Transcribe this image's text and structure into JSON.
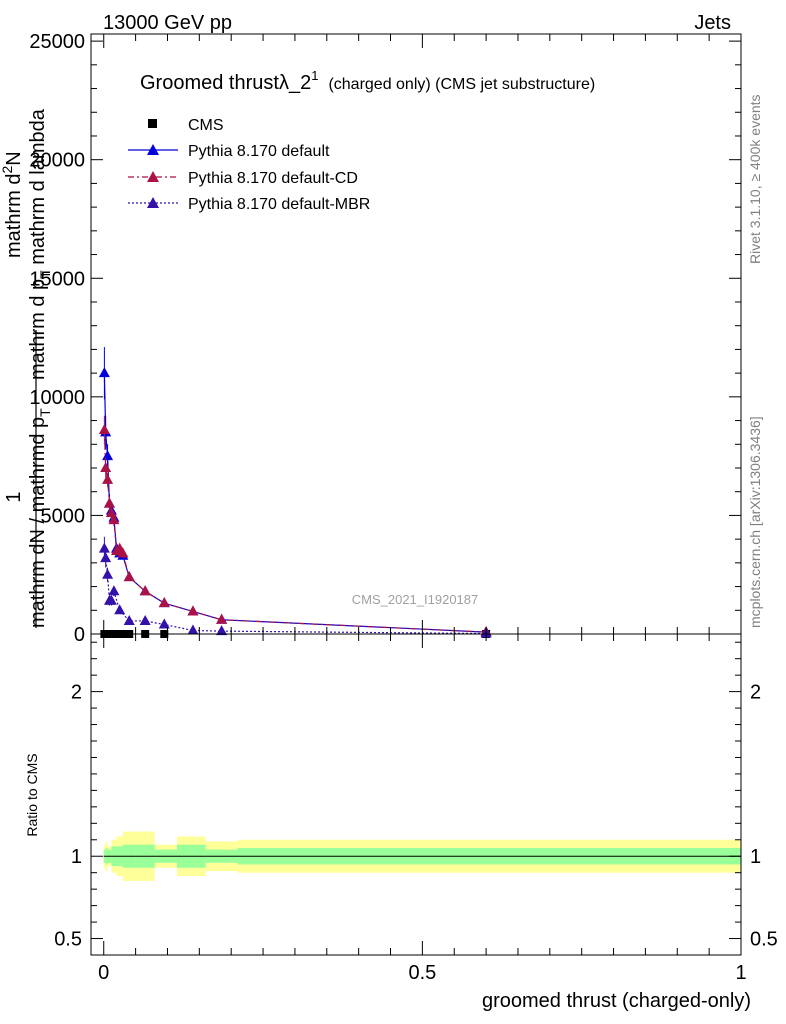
{
  "header": {
    "left": "13000 GeV pp",
    "right": "Jets"
  },
  "side_labels": {
    "rivet": "Rivet 3.1.10, ≥ 400k events",
    "mcplots": "mcplots.cern.ch [arXiv:1306.3436]"
  },
  "chart_data": {
    "type": "line",
    "title": "Groomed thrustλ_2",
    "title_superscript": "1",
    "subtitle": "(charged only) (CMS jet substructure)",
    "watermark": "CMS_2021_I1920187",
    "xlabel": "groomed thrust (charged-only)",
    "ylabel_main": {
      "prefix": "1",
      "denominator": "mathrm dN / mathrmd p",
      "denominator_sub": "T",
      "numerator": "mathrm d",
      "numerator_sup": "2",
      "numerator_rest": "N",
      "numerator_line2": "mathrm d p",
      "numerator_line2_sub": "T",
      "numerator_line2_rest": " mathrm d lambda"
    },
    "ylabel_ratio": "Ratio to CMS",
    "xlim": [
      -0.02,
      1.0
    ],
    "ylim_main": [
      0,
      25300
    ],
    "ylim_ratio": [
      0.4,
      2.35
    ],
    "x_ticks": [
      0,
      0.5,
      1
    ],
    "x_tick_labels": [
      "0",
      "0.5",
      "1"
    ],
    "y_ticks_main": [
      0,
      5000,
      10000,
      15000,
      20000,
      25000
    ],
    "y_tick_labels_main": [
      "0",
      "5000",
      "10000",
      "15000",
      "20000",
      "25000"
    ],
    "y_ticks_ratio": [
      0.5,
      1,
      2
    ],
    "y_tick_labels_ratio": [
      "0.5",
      "1",
      "2"
    ],
    "legend_position": "top-left",
    "series": [
      {
        "name": "CMS",
        "color": "#000000",
        "marker": "square",
        "x": [
          0.001,
          0.004,
          0.008,
          0.012,
          0.016,
          0.022,
          0.03,
          0.04,
          0.065,
          0.095,
          0.6
        ],
        "y": [
          0,
          0,
          0,
          0,
          0,
          0,
          0,
          0,
          0,
          0,
          0
        ]
      },
      {
        "name": "Pythia 8.170 default",
        "color": "#0000dd",
        "dash": "",
        "marker": "triangle",
        "x": [
          0.001,
          0.003,
          0.006,
          0.009,
          0.012,
          0.016,
          0.02,
          0.025,
          0.03,
          0.04,
          0.065,
          0.095,
          0.14,
          0.185,
          0.6
        ],
        "y": [
          11000,
          8500,
          7500,
          5500,
          5200,
          4900,
          3600,
          3400,
          3300,
          2400,
          1800,
          1300,
          950,
          600,
          80
        ],
        "err": [
          1100,
          700,
          500,
          400,
          300,
          300,
          250,
          200,
          150,
          100,
          80,
          60,
          50,
          40,
          10
        ]
      },
      {
        "name": "Pythia 8.170 default-CD",
        "color": "#aa1144",
        "dash": "6,3,2,3",
        "marker": "triangle",
        "x": [
          0.001,
          0.003,
          0.006,
          0.009,
          0.012,
          0.016,
          0.02,
          0.025,
          0.03,
          0.04,
          0.065,
          0.095,
          0.14,
          0.185,
          0.6
        ],
        "y": [
          8600,
          7000,
          6500,
          5500,
          5100,
          4800,
          3500,
          3600,
          3400,
          2400,
          1800,
          1300,
          950,
          600,
          80
        ],
        "err": [
          600,
          400,
          300,
          300,
          250,
          250,
          200,
          150,
          120,
          100,
          80,
          60,
          50,
          40,
          10
        ]
      },
      {
        "name": "Pythia 8.170 default-MBR",
        "color": "#3311aa",
        "dash": "2,2",
        "marker": "triangle",
        "x": [
          0.001,
          0.003,
          0.006,
          0.009,
          0.012,
          0.016,
          0.025,
          0.04,
          0.065,
          0.095,
          0.14,
          0.185,
          0.6
        ],
        "y": [
          3600,
          3200,
          2500,
          1400,
          1400,
          1800,
          1000,
          550,
          550,
          400,
          150,
          120,
          20
        ],
        "err": [
          500,
          400,
          300,
          200,
          200,
          200,
          120,
          80,
          60,
          50,
          30,
          20,
          5
        ]
      }
    ],
    "ratio_bands": {
      "inner_color": "#99ff99",
      "outer_color": "#ffff99",
      "bins": [
        {
          "x0": 0.0,
          "x1": 0.003,
          "inner": 0.04,
          "outer": 0.07
        },
        {
          "x0": 0.003,
          "x1": 0.006,
          "inner": 0.05,
          "outer": 0.09
        },
        {
          "x0": 0.006,
          "x1": 0.012,
          "inner": 0.04,
          "outer": 0.06
        },
        {
          "x0": 0.012,
          "x1": 0.02,
          "inner": 0.06,
          "outer": 0.1
        },
        {
          "x0": 0.02,
          "x1": 0.03,
          "inner": 0.06,
          "outer": 0.12
        },
        {
          "x0": 0.03,
          "x1": 0.05,
          "inner": 0.07,
          "outer": 0.15
        },
        {
          "x0": 0.05,
          "x1": 0.08,
          "inner": 0.07,
          "outer": 0.15
        },
        {
          "x0": 0.08,
          "x1": 0.115,
          "inner": 0.04,
          "outer": 0.07
        },
        {
          "x0": 0.115,
          "x1": 0.16,
          "inner": 0.07,
          "outer": 0.12
        },
        {
          "x0": 0.16,
          "x1": 0.21,
          "inner": 0.04,
          "outer": 0.09
        },
        {
          "x0": 0.21,
          "x1": 1.0,
          "inner": 0.05,
          "outer": 0.1
        }
      ],
      "ratio_line": 1
    }
  }
}
